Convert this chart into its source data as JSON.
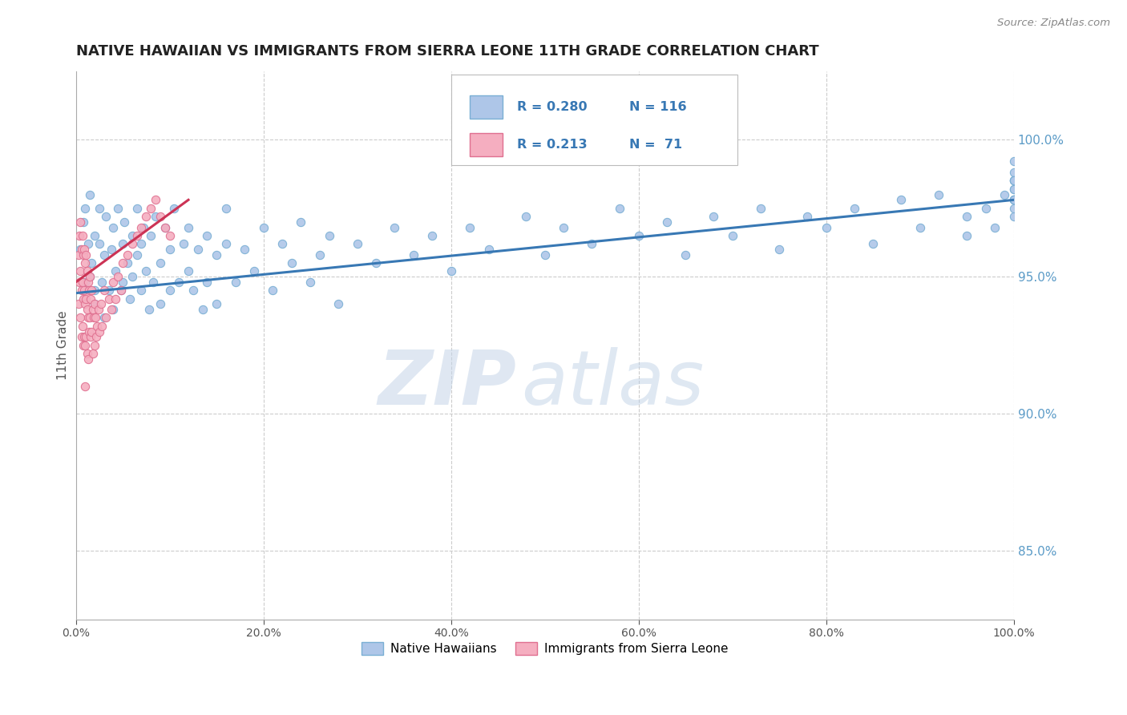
{
  "title": "NATIVE HAWAIIAN VS IMMIGRANTS FROM SIERRA LEONE 11TH GRADE CORRELATION CHART",
  "source_text": "Source: ZipAtlas.com",
  "ylabel": "11th Grade",
  "right_ytick_labels": [
    "85.0%",
    "90.0%",
    "95.0%",
    "100.0%"
  ],
  "right_ytick_values": [
    0.85,
    0.9,
    0.95,
    1.0
  ],
  "legend_entries": [
    {
      "label": "Native Hawaiians",
      "color": "#aec6e8",
      "edge": "#7aafd4",
      "R": 0.28,
      "N": 116
    },
    {
      "label": "Immigrants from Sierra Leone",
      "color": "#f5aec0",
      "edge": "#e07090",
      "R": 0.213,
      "N": 71
    }
  ],
  "trend_blue": "#3878b4",
  "trend_pink": "#cc3355",
  "watermark_zip": "ZIP",
  "watermark_atlas": "atlas",
  "xmin": 0.0,
  "xmax": 1.0,
  "ymin": 0.825,
  "ymax": 1.025,
  "xticks": [
    0.0,
    0.2,
    0.4,
    0.6,
    0.8,
    1.0
  ],
  "xtick_labels": [
    "0.0%",
    "20.0%",
    "40.0%",
    "60.0%",
    "80.0%",
    "100.0%"
  ],
  "marker_size": 55,
  "blue_trend_x": [
    0.0,
    1.0
  ],
  "blue_trend_y": [
    0.944,
    0.978
  ],
  "pink_trend_x": [
    0.0,
    0.12
  ],
  "pink_trend_y": [
    0.948,
    0.978
  ],
  "blue_scatter_x": [
    0.005,
    0.008,
    0.01,
    0.01,
    0.013,
    0.015,
    0.015,
    0.017,
    0.02,
    0.02,
    0.02,
    0.025,
    0.025,
    0.028,
    0.03,
    0.03,
    0.032,
    0.035,
    0.038,
    0.04,
    0.04,
    0.042,
    0.045,
    0.048,
    0.05,
    0.05,
    0.052,
    0.055,
    0.058,
    0.06,
    0.06,
    0.065,
    0.065,
    0.07,
    0.07,
    0.072,
    0.075,
    0.078,
    0.08,
    0.082,
    0.085,
    0.09,
    0.09,
    0.095,
    0.1,
    0.1,
    0.105,
    0.11,
    0.115,
    0.12,
    0.12,
    0.125,
    0.13,
    0.135,
    0.14,
    0.14,
    0.15,
    0.15,
    0.16,
    0.16,
    0.17,
    0.18,
    0.19,
    0.2,
    0.21,
    0.22,
    0.23,
    0.24,
    0.25,
    0.26,
    0.27,
    0.28,
    0.3,
    0.32,
    0.34,
    0.36,
    0.38,
    0.4,
    0.42,
    0.44,
    0.48,
    0.5,
    0.52,
    0.55,
    0.58,
    0.6,
    0.63,
    0.65,
    0.68,
    0.7,
    0.73,
    0.75,
    0.78,
    0.8,
    0.83,
    0.85,
    0.88,
    0.9,
    0.92,
    0.95,
    0.95,
    0.97,
    0.98,
    0.99,
    1.0,
    1.0,
    1.0,
    1.0,
    1.0,
    1.0,
    1.0,
    1.0,
    1.0,
    1.0,
    1.0,
    1.0,
    1.0
  ],
  "blue_scatter_y": [
    0.96,
    0.97,
    0.948,
    0.975,
    0.962,
    0.95,
    0.98,
    0.955,
    0.94,
    0.965,
    0.945,
    0.962,
    0.975,
    0.948,
    0.958,
    0.935,
    0.972,
    0.945,
    0.96,
    0.938,
    0.968,
    0.952,
    0.975,
    0.945,
    0.962,
    0.948,
    0.97,
    0.955,
    0.942,
    0.965,
    0.95,
    0.958,
    0.975,
    0.945,
    0.962,
    0.968,
    0.952,
    0.938,
    0.965,
    0.948,
    0.972,
    0.955,
    0.94,
    0.968,
    0.945,
    0.96,
    0.975,
    0.948,
    0.962,
    0.952,
    0.968,
    0.945,
    0.96,
    0.938,
    0.965,
    0.948,
    0.958,
    0.94,
    0.962,
    0.975,
    0.948,
    0.96,
    0.952,
    0.968,
    0.945,
    0.962,
    0.955,
    0.97,
    0.948,
    0.958,
    0.965,
    0.94,
    0.962,
    0.955,
    0.968,
    0.958,
    0.965,
    0.952,
    0.968,
    0.96,
    0.972,
    0.958,
    0.968,
    0.962,
    0.975,
    0.965,
    0.97,
    0.958,
    0.972,
    0.965,
    0.975,
    0.96,
    0.972,
    0.968,
    0.975,
    0.962,
    0.978,
    0.968,
    0.98,
    0.972,
    0.965,
    0.975,
    0.968,
    0.98,
    0.978,
    0.972,
    0.985,
    0.978,
    0.982,
    0.975,
    0.988,
    0.982,
    0.978,
    0.985,
    0.992,
    0.985,
    0.978
  ],
  "pink_scatter_x": [
    0.003,
    0.003,
    0.004,
    0.004,
    0.005,
    0.005,
    0.005,
    0.006,
    0.006,
    0.006,
    0.007,
    0.007,
    0.007,
    0.008,
    0.008,
    0.008,
    0.009,
    0.009,
    0.009,
    0.01,
    0.01,
    0.01,
    0.01,
    0.011,
    0.011,
    0.011,
    0.012,
    0.012,
    0.012,
    0.013,
    0.013,
    0.013,
    0.014,
    0.014,
    0.015,
    0.015,
    0.016,
    0.016,
    0.017,
    0.017,
    0.018,
    0.018,
    0.019,
    0.02,
    0.02,
    0.021,
    0.022,
    0.023,
    0.024,
    0.025,
    0.027,
    0.028,
    0.03,
    0.032,
    0.035,
    0.038,
    0.04,
    0.042,
    0.045,
    0.048,
    0.05,
    0.055,
    0.06,
    0.065,
    0.07,
    0.075,
    0.08,
    0.085,
    0.09,
    0.095,
    0.1
  ],
  "pink_scatter_y": [
    0.958,
    0.94,
    0.965,
    0.948,
    0.97,
    0.952,
    0.935,
    0.96,
    0.945,
    0.928,
    0.965,
    0.948,
    0.932,
    0.958,
    0.942,
    0.925,
    0.96,
    0.945,
    0.928,
    0.955,
    0.94,
    0.925,
    0.91,
    0.958,
    0.942,
    0.928,
    0.952,
    0.938,
    0.922,
    0.948,
    0.935,
    0.92,
    0.945,
    0.93,
    0.95,
    0.935,
    0.942,
    0.928,
    0.945,
    0.93,
    0.938,
    0.922,
    0.935,
    0.94,
    0.925,
    0.935,
    0.928,
    0.932,
    0.938,
    0.93,
    0.94,
    0.932,
    0.945,
    0.935,
    0.942,
    0.938,
    0.948,
    0.942,
    0.95,
    0.945,
    0.955,
    0.958,
    0.962,
    0.965,
    0.968,
    0.972,
    0.975,
    0.978,
    0.972,
    0.968,
    0.965
  ]
}
